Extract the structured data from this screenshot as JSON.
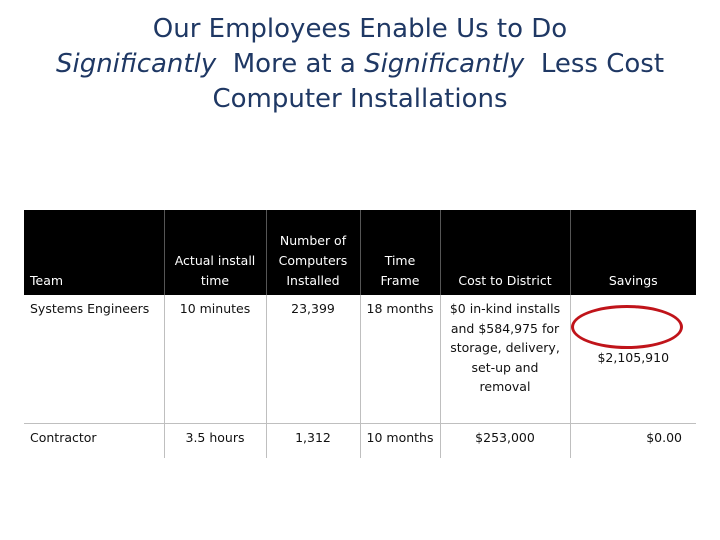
{
  "title": {
    "line1": "Our Employees Enable Us to Do",
    "line2_a": "Significantly",
    "line2_b": "  More at a ",
    "line2_c": "Significantly",
    "line2_d": "  Less Cost",
    "line3": "Computer Installations"
  },
  "table": {
    "headers": {
      "team": "Team",
      "install_time": "Actual install time",
      "computers": "Number of Computers Installed",
      "time_frame": "Time Frame",
      "cost": "Cost to District",
      "savings": "Savings"
    },
    "rows": [
      {
        "team": "Systems Engineers",
        "install_time": "10 minutes",
        "computers": "23,399",
        "time_frame": "18 months",
        "cost": "$0 in-kind installs and $584,975 for storage, delivery, set-up and removal",
        "savings": "$2,105,910"
      },
      {
        "team": "Contractor",
        "install_time": "3.5 hours",
        "computers": "1,312",
        "time_frame": "10 months",
        "cost": "$253,000",
        "savings": "$0.00"
      }
    ]
  },
  "highlight_color": "#c0141a"
}
